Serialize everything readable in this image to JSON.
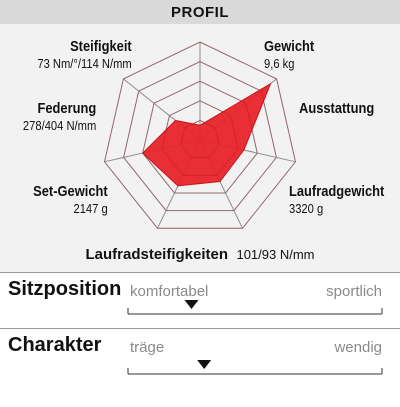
{
  "header": {
    "title": "PROFIL"
  },
  "chart_data": {
    "type": "radar",
    "axes": [
      {
        "name": "Gewicht",
        "value_text": "9,6 kg",
        "score": 0.15
      },
      {
        "name": "Ausstattung",
        "value_text": "",
        "score": 0.92
      },
      {
        "name": "Laufradgewicht",
        "value_text": "3320 g",
        "score": 0.46
      },
      {
        "name": "Laufradsteifigkeiten",
        "value_text": "101/93 N/mm",
        "score": 0.47
      },
      {
        "name": "Set-Gewicht",
        "value_text": "2147 g",
        "score": 0.52
      },
      {
        "name": "Federung",
        "value_text": "278/404 N/mm",
        "score": 0.6
      },
      {
        "name": "Steifigkeit",
        "value_text": "73 Nm/°/114 N/mm",
        "score": 0.32
      }
    ],
    "rings": 5,
    "fill_color": "#e8242b",
    "grid_color": "#8c8c8c"
  },
  "scales": [
    {
      "title": "Sitzposition",
      "left_label": "komfortabel",
      "right_label": "sportlich",
      "marker": 0.25
    },
    {
      "title": "Charakter",
      "left_label": "träge",
      "right_label": "wendig",
      "marker": 0.3
    }
  ]
}
